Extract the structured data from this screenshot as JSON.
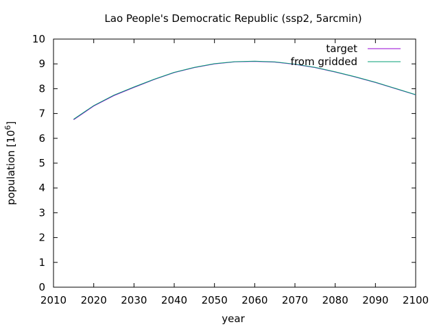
{
  "chart_data": {
    "type": "line",
    "title": "Lao People's Democratic Republic (ssp2, 5arcmin)",
    "xlabel": "year",
    "ylabel_main": "population [10",
    "ylabel_sup": "6",
    "ylabel_end": "]",
    "xlim": [
      2010,
      2100
    ],
    "ylim": [
      0,
      10
    ],
    "xticks": [
      "2010",
      "2020",
      "2030",
      "2040",
      "2050",
      "2060",
      "2070",
      "2080",
      "2090",
      "2100"
    ],
    "yticks": [
      "0",
      "1",
      "2",
      "3",
      "4",
      "5",
      "6",
      "7",
      "8",
      "9",
      "10"
    ],
    "grid": false,
    "legend_position": "top-right",
    "series": [
      {
        "name": "target",
        "color": "#9400d3",
        "x": [
          2015,
          2020,
          2025,
          2030,
          2035,
          2040,
          2045,
          2050,
          2055,
          2060,
          2065,
          2070,
          2075,
          2080,
          2085,
          2090,
          2095,
          2100
        ],
        "y": [
          6.75,
          7.3,
          7.72,
          8.05,
          8.37,
          8.65,
          8.85,
          9.0,
          9.08,
          9.1,
          9.07,
          8.98,
          8.85,
          8.67,
          8.47,
          8.25,
          8.0,
          7.75
        ]
      },
      {
        "name": "from gridded",
        "color": "#009e73",
        "x": [
          2015,
          2020,
          2025,
          2030,
          2035,
          2040,
          2045,
          2050,
          2055,
          2060,
          2065,
          2070,
          2075,
          2080,
          2085,
          2090,
          2095,
          2100
        ],
        "y": [
          6.77,
          7.32,
          7.74,
          8.07,
          8.38,
          8.66,
          8.86,
          9.01,
          9.09,
          9.11,
          9.08,
          8.99,
          8.86,
          8.68,
          8.48,
          8.26,
          8.01,
          7.76
        ]
      }
    ]
  }
}
